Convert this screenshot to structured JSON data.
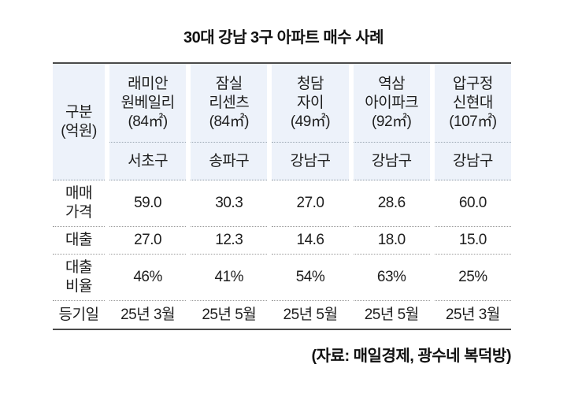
{
  "title": "30대 강남 3구 아파트 매수 사례",
  "source": "(자료: 매일경제, 광수네 복덕방)",
  "colors": {
    "header_bg": "#edf2fa",
    "solid_border": "#4a4a4a",
    "dotted_border": "#9a9a9a",
    "text": "#1e1e1e"
  },
  "chart_data": {
    "type": "table",
    "title": "30대 강남 3구 아파트 매수 사례",
    "corner_label": "구분\n(억원)",
    "columns": [
      {
        "apartment": "래미안\n원베일리",
        "area": "(84㎡)",
        "district": "서초구"
      },
      {
        "apartment": "잠실\n리센츠",
        "area": "(84㎡)",
        "district": "송파구"
      },
      {
        "apartment": "청담\n자이",
        "area": "(49㎡)",
        "district": "강남구"
      },
      {
        "apartment": "역삼\n아이파크",
        "area": "(92㎡)",
        "district": "강남구"
      },
      {
        "apartment": "압구정\n신현대",
        "area": "(107㎡)",
        "district": "강남구"
      }
    ],
    "rows": [
      {
        "label": "매매\n가격",
        "values": [
          "59.0",
          "30.3",
          "27.0",
          "28.6",
          "60.0"
        ]
      },
      {
        "label": "대출",
        "values": [
          "27.0",
          "12.3",
          "14.6",
          "18.0",
          "15.0"
        ]
      },
      {
        "label": "대출\n비율",
        "values": [
          "46%",
          "41%",
          "54%",
          "63%",
          "25%"
        ]
      },
      {
        "label": "등기일",
        "values": [
          "25년 3월",
          "25년 5월",
          "25년 5월",
          "25년 5월",
          "25년 3월"
        ]
      }
    ],
    "source": "(자료: 매일경제, 광수네 복덕방)"
  }
}
